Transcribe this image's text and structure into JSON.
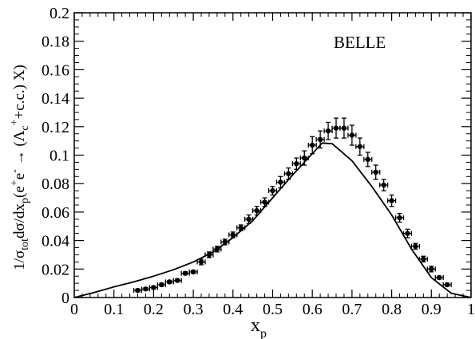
{
  "chart_data": {
    "type": "scatter",
    "xlabel": "x",
    "xlabel_sub": "p",
    "ylabel": "1/σ",
    "ylabel_sub_tot": "tot",
    "ylabel_mid": "dσ/dx",
    "ylabel_sub_p": "p",
    "ylabel_end_1": "(e",
    "ylabel_sup_plus": "+",
    "ylabel_end_2": "e",
    "ylabel_sup_minus": "-",
    "ylabel_end_3": " → (Λ",
    "ylabel_sub_c": "c",
    "ylabel_sup_c": "+",
    "ylabel_end_4": "+c.c.) X)",
    "annotation": "BELLE",
    "xlim": [
      0,
      1
    ],
    "ylim": [
      0,
      0.2
    ],
    "x_ticks": [
      "0",
      "0.1",
      "0.2",
      "0.3",
      "0.4",
      "0.5",
      "0.6",
      "0.7",
      "0.8",
      "0.9",
      "1"
    ],
    "y_ticks": [
      "0",
      "0.02",
      "0.04",
      "0.06",
      "0.08",
      "0.1",
      "0.12",
      "0.14",
      "0.16",
      "0.18",
      "0.2"
    ],
    "series": [
      {
        "type": "points_with_errors",
        "x": [
          0.16,
          0.18,
          0.2,
          0.22,
          0.24,
          0.26,
          0.28,
          0.3,
          0.32,
          0.34,
          0.36,
          0.38,
          0.4,
          0.42,
          0.44,
          0.46,
          0.48,
          0.5,
          0.52,
          0.54,
          0.56,
          0.58,
          0.6,
          0.62,
          0.64,
          0.66,
          0.68,
          0.7,
          0.72,
          0.74,
          0.76,
          0.78,
          0.8,
          0.82,
          0.84,
          0.86,
          0.88,
          0.9,
          0.92,
          0.94
        ],
        "y": [
          0.005,
          0.006,
          0.007,
          0.009,
          0.011,
          0.012,
          0.017,
          0.018,
          0.025,
          0.03,
          0.034,
          0.039,
          0.044,
          0.049,
          0.055,
          0.061,
          0.067,
          0.075,
          0.081,
          0.087,
          0.094,
          0.098,
          0.107,
          0.111,
          0.117,
          0.119,
          0.119,
          0.114,
          0.106,
          0.097,
          0.088,
          0.079,
          0.068,
          0.056,
          0.045,
          0.036,
          0.027,
          0.02,
          0.014,
          0.009
        ],
        "yerr": [
          0.001,
          0.001,
          0.001,
          0.001,
          0.001,
          0.001,
          0.001,
          0.001,
          0.002,
          0.002,
          0.002,
          0.002,
          0.002,
          0.002,
          0.003,
          0.003,
          0.003,
          0.003,
          0.004,
          0.004,
          0.004,
          0.005,
          0.006,
          0.006,
          0.006,
          0.007,
          0.007,
          0.007,
          0.006,
          0.005,
          0.005,
          0.004,
          0.004,
          0.003,
          0.003,
          0.002,
          0.002,
          0.002,
          0.001,
          0.001
        ],
        "xerr": 0.01
      },
      {
        "type": "line",
        "x": [
          0,
          0.05,
          0.1,
          0.15,
          0.2,
          0.25,
          0.3,
          0.35,
          0.4,
          0.45,
          0.5,
          0.55,
          0.6,
          0.625,
          0.65,
          0.7,
          0.75,
          0.8,
          0.85,
          0.9,
          0.95,
          1.0
        ],
        "y": [
          0,
          0.0035,
          0.0075,
          0.011,
          0.015,
          0.0195,
          0.025,
          0.032,
          0.042,
          0.054,
          0.07,
          0.086,
          0.101,
          0.1085,
          0.108,
          0.096,
          0.078,
          0.058,
          0.034,
          0.014,
          0.003,
          0
        ]
      }
    ]
  }
}
